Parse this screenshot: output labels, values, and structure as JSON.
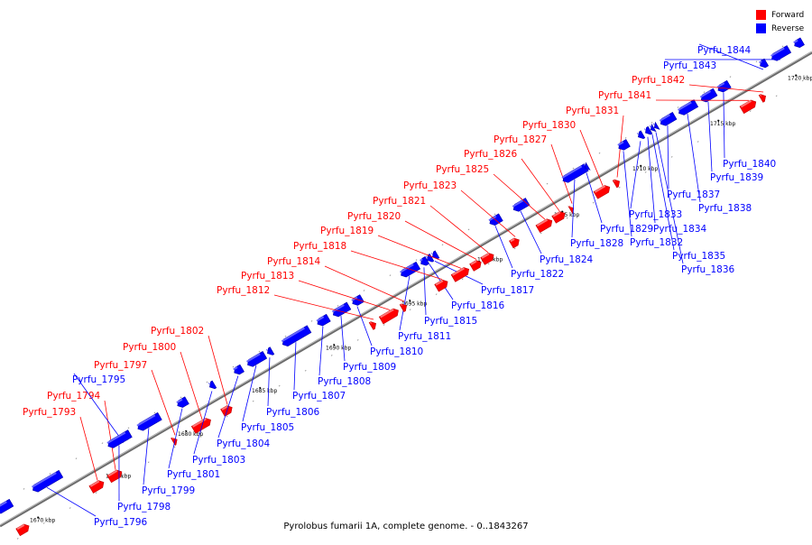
{
  "legend": {
    "forward": {
      "label": "Forward",
      "color": "#ff0000"
    },
    "reverse": {
      "label": "Reverse",
      "color": "#0000ff"
    }
  },
  "caption": "Pyrolobus fumarii 1A, complete genome. - 0..1843267",
  "axis_color": "#6b6b6b",
  "scale_labels": [
    "1670 kbp",
    "1675 kbp",
    "1680 kbp",
    "1685 kbp",
    "1690 kbp",
    "1695 kbp",
    "1700 kbp",
    "1705 kbp",
    "1710 kbp",
    "1715 kbp",
    "1720 kbp"
  ],
  "genes": [
    {
      "name": "Pyrfu_1793",
      "strand": "forward"
    },
    {
      "name": "Pyrfu_1794",
      "strand": "forward"
    },
    {
      "name": "Pyrfu_1795",
      "strand": "reverse"
    },
    {
      "name": "Pyrfu_1796",
      "strand": "reverse"
    },
    {
      "name": "Pyrfu_1797",
      "strand": "forward"
    },
    {
      "name": "Pyrfu_1798",
      "strand": "reverse"
    },
    {
      "name": "Pyrfu_1799",
      "strand": "reverse"
    },
    {
      "name": "Pyrfu_1800",
      "strand": "forward"
    },
    {
      "name": "Pyrfu_1801",
      "strand": "reverse"
    },
    {
      "name": "Pyrfu_1802",
      "strand": "forward"
    },
    {
      "name": "Pyrfu_1803",
      "strand": "reverse"
    },
    {
      "name": "Pyrfu_1804",
      "strand": "reverse"
    },
    {
      "name": "Pyrfu_1805",
      "strand": "reverse"
    },
    {
      "name": "Pyrfu_1806",
      "strand": "reverse"
    },
    {
      "name": "Pyrfu_1807",
      "strand": "reverse"
    },
    {
      "name": "Pyrfu_1808",
      "strand": "reverse"
    },
    {
      "name": "Pyrfu_1809",
      "strand": "reverse"
    },
    {
      "name": "Pyrfu_1810",
      "strand": "reverse"
    },
    {
      "name": "Pyrfu_1811",
      "strand": "reverse"
    },
    {
      "name": "Pyrfu_1812",
      "strand": "forward"
    },
    {
      "name": "Pyrfu_1813",
      "strand": "forward"
    },
    {
      "name": "Pyrfu_1814",
      "strand": "forward"
    },
    {
      "name": "Pyrfu_1815",
      "strand": "reverse"
    },
    {
      "name": "Pyrfu_1816",
      "strand": "reverse"
    },
    {
      "name": "Pyrfu_1817",
      "strand": "reverse"
    },
    {
      "name": "Pyrfu_1818",
      "strand": "forward"
    },
    {
      "name": "Pyrfu_1819",
      "strand": "forward"
    },
    {
      "name": "Pyrfu_1820",
      "strand": "forward"
    },
    {
      "name": "Pyrfu_1821",
      "strand": "forward"
    },
    {
      "name": "Pyrfu_1822",
      "strand": "reverse"
    },
    {
      "name": "Pyrfu_1823",
      "strand": "forward"
    },
    {
      "name": "Pyrfu_1824",
      "strand": "reverse"
    },
    {
      "name": "Pyrfu_1825",
      "strand": "forward"
    },
    {
      "name": "Pyrfu_1826",
      "strand": "forward"
    },
    {
      "name": "Pyrfu_1827",
      "strand": "forward"
    },
    {
      "name": "Pyrfu_1828",
      "strand": "reverse"
    },
    {
      "name": "Pyrfu_1829",
      "strand": "reverse"
    },
    {
      "name": "Pyrfu_1830",
      "strand": "forward"
    },
    {
      "name": "Pyrfu_1831",
      "strand": "forward"
    },
    {
      "name": "Pyrfu_1832",
      "strand": "reverse"
    },
    {
      "name": "Pyrfu_1833",
      "strand": "reverse"
    },
    {
      "name": "Pyrfu_1834",
      "strand": "reverse"
    },
    {
      "name": "Pyrfu_1835",
      "strand": "reverse"
    },
    {
      "name": "Pyrfu_1836",
      "strand": "reverse"
    },
    {
      "name": "Pyrfu_1837",
      "strand": "reverse"
    },
    {
      "name": "Pyrfu_1838",
      "strand": "reverse"
    },
    {
      "name": "Pyrfu_1839",
      "strand": "reverse"
    },
    {
      "name": "Pyrfu_1840",
      "strand": "reverse"
    },
    {
      "name": "Pyrfu_1841",
      "strand": "forward"
    },
    {
      "name": "Pyrfu_1842",
      "strand": "forward"
    },
    {
      "name": "Pyrfu_1843",
      "strand": "reverse"
    },
    {
      "name": "Pyrfu_1844",
      "strand": "reverse"
    }
  ]
}
